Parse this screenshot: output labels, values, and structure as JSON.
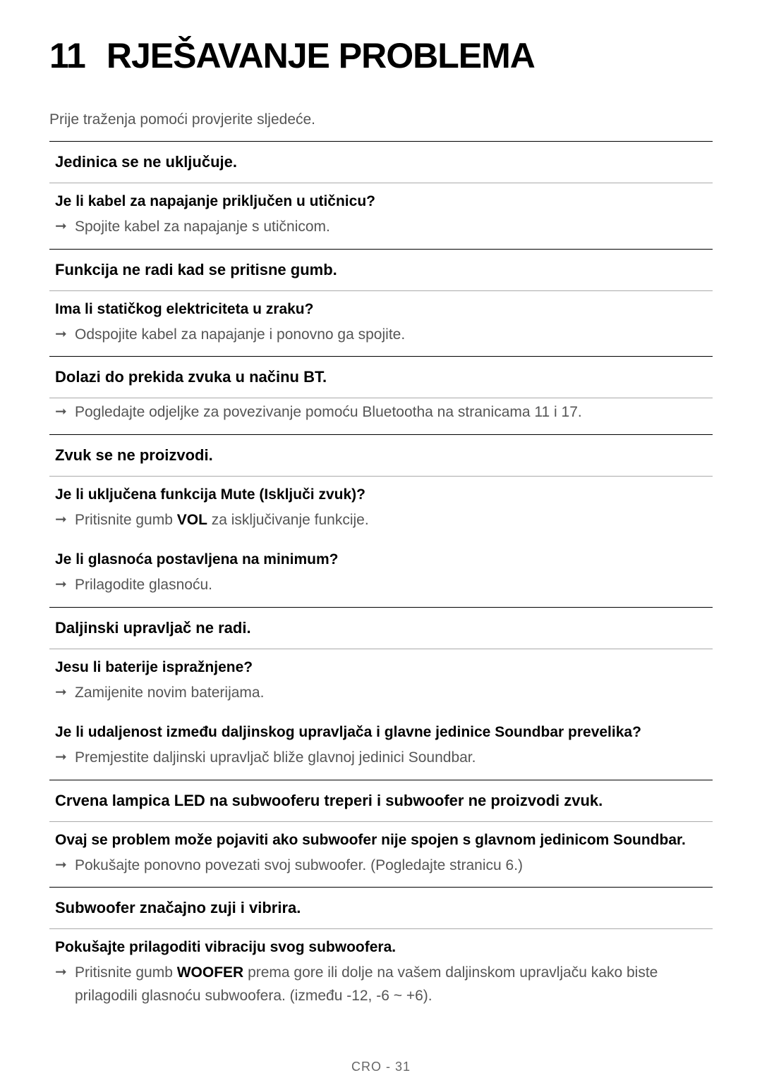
{
  "title": {
    "number": "11",
    "text": "RJEŠAVANJE PROBLEMA"
  },
  "intro": "Prije traženja pomoći provjerite sljedeće.",
  "sections": [
    {
      "header": "Jedinica se ne uključuje.",
      "blocks": [
        {
          "question": "Je li kabel za napajanje priključen u utičnicu?",
          "answers": [
            "Spojite kabel za napajanje s utičnicom."
          ]
        }
      ]
    },
    {
      "header": "Funkcija ne radi kad se pritisne gumb.",
      "blocks": [
        {
          "question": "Ima li statičkog elektriciteta u zraku?",
          "answers": [
            "Odspojite kabel za napajanje i ponovno ga spojite."
          ]
        }
      ]
    },
    {
      "header": "Dolazi do prekida zvuka u načinu BT.",
      "blocks": [
        {
          "question": "",
          "answers": [
            "Pogledajte odjeljke za povezivanje pomoću Bluetootha na stranicama 11 i 17."
          ]
        }
      ]
    },
    {
      "header": "Zvuk se ne proizvodi.",
      "blocks": [
        {
          "question": "Je li uključena funkcija Mute (Isključi zvuk)?",
          "answers_html": [
            "Pritisnite gumb <b>VOL</b> za isključivanje funkcije."
          ]
        },
        {
          "question": "Je li glasnoća postavljena na minimum?",
          "answers": [
            "Prilagodite glasnoću."
          ]
        }
      ]
    },
    {
      "header": "Daljinski upravljač ne radi.",
      "blocks": [
        {
          "question": "Jesu li baterije ispražnjene?",
          "answers": [
            "Zamijenite novim baterijama."
          ]
        },
        {
          "question": "Je li udaljenost između daljinskog upravljača i glavne jedinice Soundbar prevelika?",
          "answers": [
            "Premjestite daljinski upravljač bliže glavnoj jedinici Soundbar."
          ]
        }
      ]
    },
    {
      "header": "Crvena lampica LED na subwooferu treperi i subwoofer ne proizvodi zvuk.",
      "blocks": [
        {
          "question": "Ovaj se problem može pojaviti ako subwoofer nije spojen s glavnom jedinicom Soundbar.",
          "answers": [
            "Pokušajte ponovno povezati svoj subwoofer. (Pogledajte stranicu  6.)"
          ]
        }
      ]
    },
    {
      "header": "Subwoofer značajno zuji i vibrira.",
      "blocks": [
        {
          "question": "Pokušajte prilagoditi vibraciju svog subwoofera.",
          "answers_html": [
            "Pritisnite gumb <b>WOOFER</b> prema gore ili dolje na vašem daljinskom upravljaču kako biste prilagodili glasnoću subwoofera. (između -12, -6 ~ +6)."
          ]
        }
      ]
    }
  ],
  "page_number": "CRO - 31"
}
